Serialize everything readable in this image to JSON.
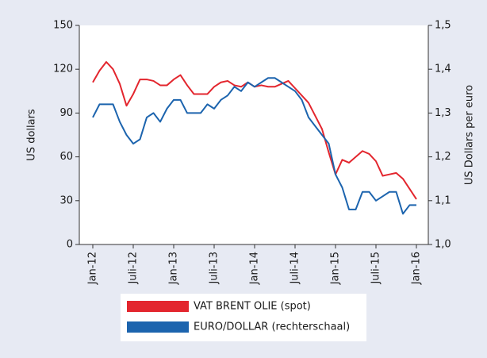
{
  "chart_data": {
    "type": "line",
    "ylabel": "US dollars",
    "y2label": "US Dollars per euro",
    "categories": [
      "Jan-12",
      null,
      null,
      null,
      null,
      null,
      "Juli-12",
      null,
      null,
      null,
      null,
      null,
      "Jan-13",
      null,
      null,
      null,
      null,
      null,
      "Juli-13",
      null,
      null,
      null,
      null,
      null,
      "Jan-14",
      null,
      null,
      null,
      null,
      null,
      "Juli-14",
      null,
      null,
      null,
      null,
      null,
      "Jan-15",
      null,
      null,
      null,
      null,
      null,
      "Juli-15",
      null,
      null,
      null,
      null,
      null,
      "Jan-16"
    ],
    "ylim": [
      0,
      150
    ],
    "yticks": [
      0,
      30,
      60,
      90,
      120,
      150
    ],
    "y2lim": [
      1.0,
      1.5
    ],
    "y2ticks": [
      {
        "value": 1.0,
        "label": "1,0"
      },
      {
        "value": 1.1,
        "label": "1,1"
      },
      {
        "value": 1.2,
        "label": "1,2"
      },
      {
        "value": 1.3,
        "label": "1,3"
      },
      {
        "value": 1.4,
        "label": "1,4"
      },
      {
        "value": 1.5,
        "label": "1,5"
      }
    ],
    "series": [
      {
        "name": "VAT BRENT OLIE (spot)",
        "color": "#e3262e",
        "values": [
          111,
          119,
          125,
          120,
          110,
          95,
          103,
          113,
          113,
          112,
          109,
          109,
          113,
          116,
          109,
          103,
          103,
          103,
          108,
          111,
          112,
          109,
          108,
          111,
          108,
          109,
          108,
          108,
          110,
          112,
          107,
          102,
          97,
          88,
          79,
          63,
          48,
          58,
          56,
          60,
          64,
          62,
          57,
          47,
          48,
          49,
          45,
          38,
          31
        ]
      },
      {
        "name": "EURO/DOLLAR (rechterschaal)",
        "color": "#1c64ae",
        "axis": "y2",
        "values": [
          1.29,
          1.32,
          1.32,
          1.32,
          1.28,
          1.25,
          1.23,
          1.24,
          1.29,
          1.3,
          1.28,
          1.31,
          1.33,
          1.33,
          1.3,
          1.3,
          1.3,
          1.32,
          1.31,
          1.33,
          1.34,
          1.36,
          1.35,
          1.37,
          1.36,
          1.37,
          1.38,
          1.38,
          1.37,
          1.36,
          1.35,
          1.33,
          1.29,
          1.27,
          1.25,
          1.23,
          1.16,
          1.13,
          1.08,
          1.08,
          1.12,
          1.12,
          1.1,
          1.11,
          1.12,
          1.12,
          1.07,
          1.09,
          1.09
        ]
      }
    ]
  }
}
